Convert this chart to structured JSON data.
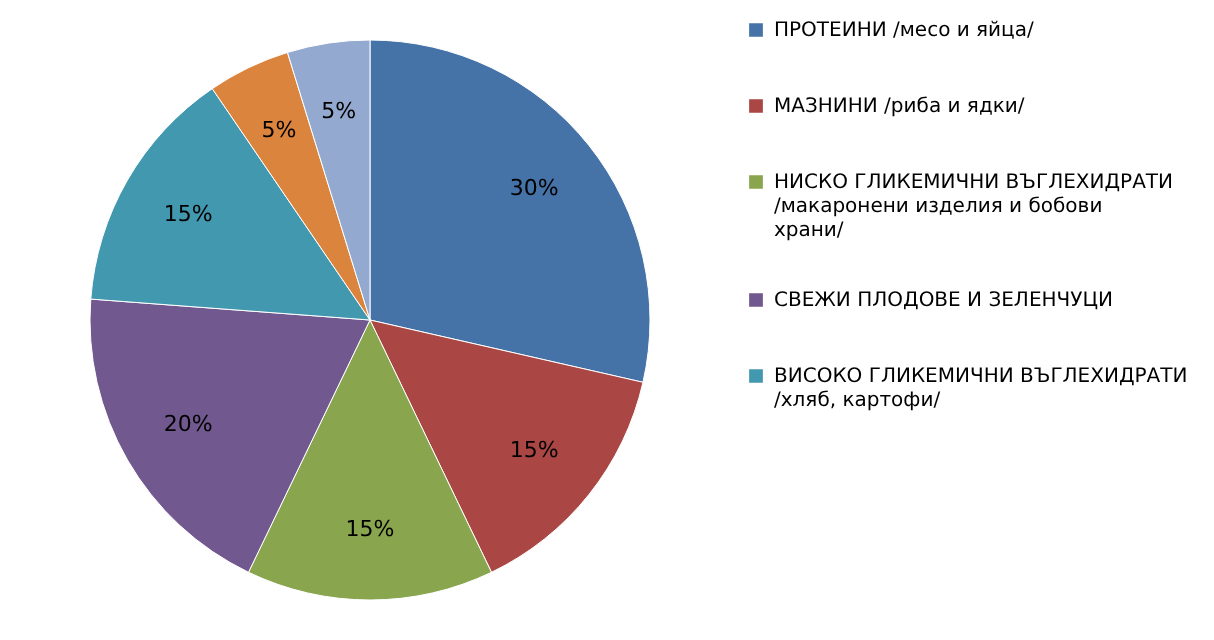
{
  "chart_data": {
    "type": "pie",
    "categories": [
      "ПРОТЕИНИ /месо и яйца/",
      "МАЗНИНИ /риба и ядки/",
      "НИСКО ГЛИКЕМИЧНИ ВЪГЛЕХИДРАТИ /макаронени изделия и бобови храни/",
      "СВЕЖИ ПЛОДОВЕ И ЗЕЛЕНЧУЦИ",
      "ВИСОКО ГЛИКЕМИЧНИ ВЪГЛЕХИДРАТИ /хляб, картофи/",
      null,
      null
    ],
    "values": [
      30,
      15,
      15,
      20,
      15,
      5,
      5
    ],
    "colors": [
      "#4572a7",
      "#aa4643",
      "#89a54e",
      "#71588f",
      "#4198af",
      "#db843d",
      "#93a9cf"
    ],
    "value_labels": [
      "30%",
      "15%",
      "15%",
      "20%",
      "15%",
      "5%",
      "5%"
    ],
    "legend": "right"
  }
}
